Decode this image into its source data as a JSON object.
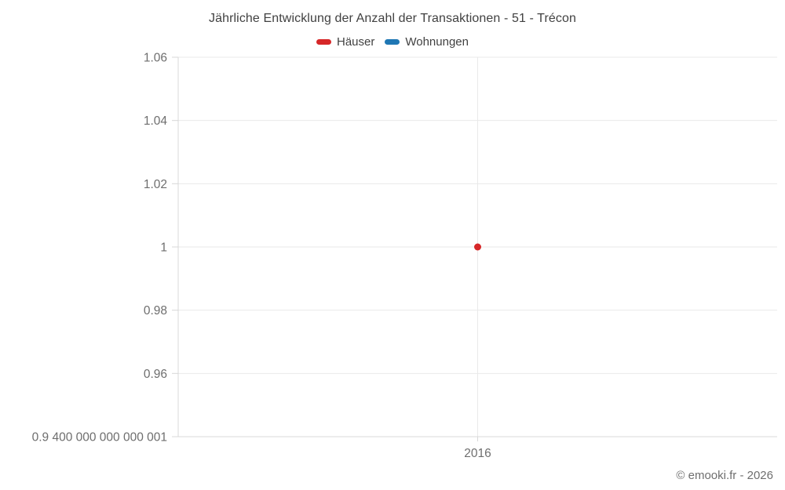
{
  "chart_data": {
    "type": "scatter",
    "title": "Jährliche Entwicklung der Anzahl der Transaktionen - 51 - Trécon",
    "xlabel": "",
    "ylabel": "",
    "grid": true,
    "legend_position": "top",
    "legend": [
      {
        "label": "Häuser",
        "color": "#d62728"
      },
      {
        "label": "Wohnungen",
        "color": "#1f77b4"
      }
    ],
    "x_ticks": [
      {
        "value": 2016,
        "label": "2016"
      }
    ],
    "y_ticks": [
      {
        "value": 1.06,
        "label": "1.06"
      },
      {
        "value": 1.04,
        "label": "1.04"
      },
      {
        "value": 1.02,
        "label": "1.02"
      },
      {
        "value": 1,
        "label": "1"
      },
      {
        "value": 0.98,
        "label": "0.98"
      },
      {
        "value": 0.96,
        "label": "0.96"
      },
      {
        "value": 0.9400000000000001,
        "label": "0.9 400 000 000 000 001"
      }
    ],
    "ylim": [
      0.9400000000000001,
      1.06
    ],
    "series": [
      {
        "name": "Häuser",
        "color": "#d62728",
        "points": [
          {
            "x": 2016,
            "y": 1
          }
        ]
      },
      {
        "name": "Wohnungen",
        "color": "#1f77b4",
        "points": []
      }
    ]
  },
  "footer": {
    "credit": "© emooki.fr - 2026"
  }
}
